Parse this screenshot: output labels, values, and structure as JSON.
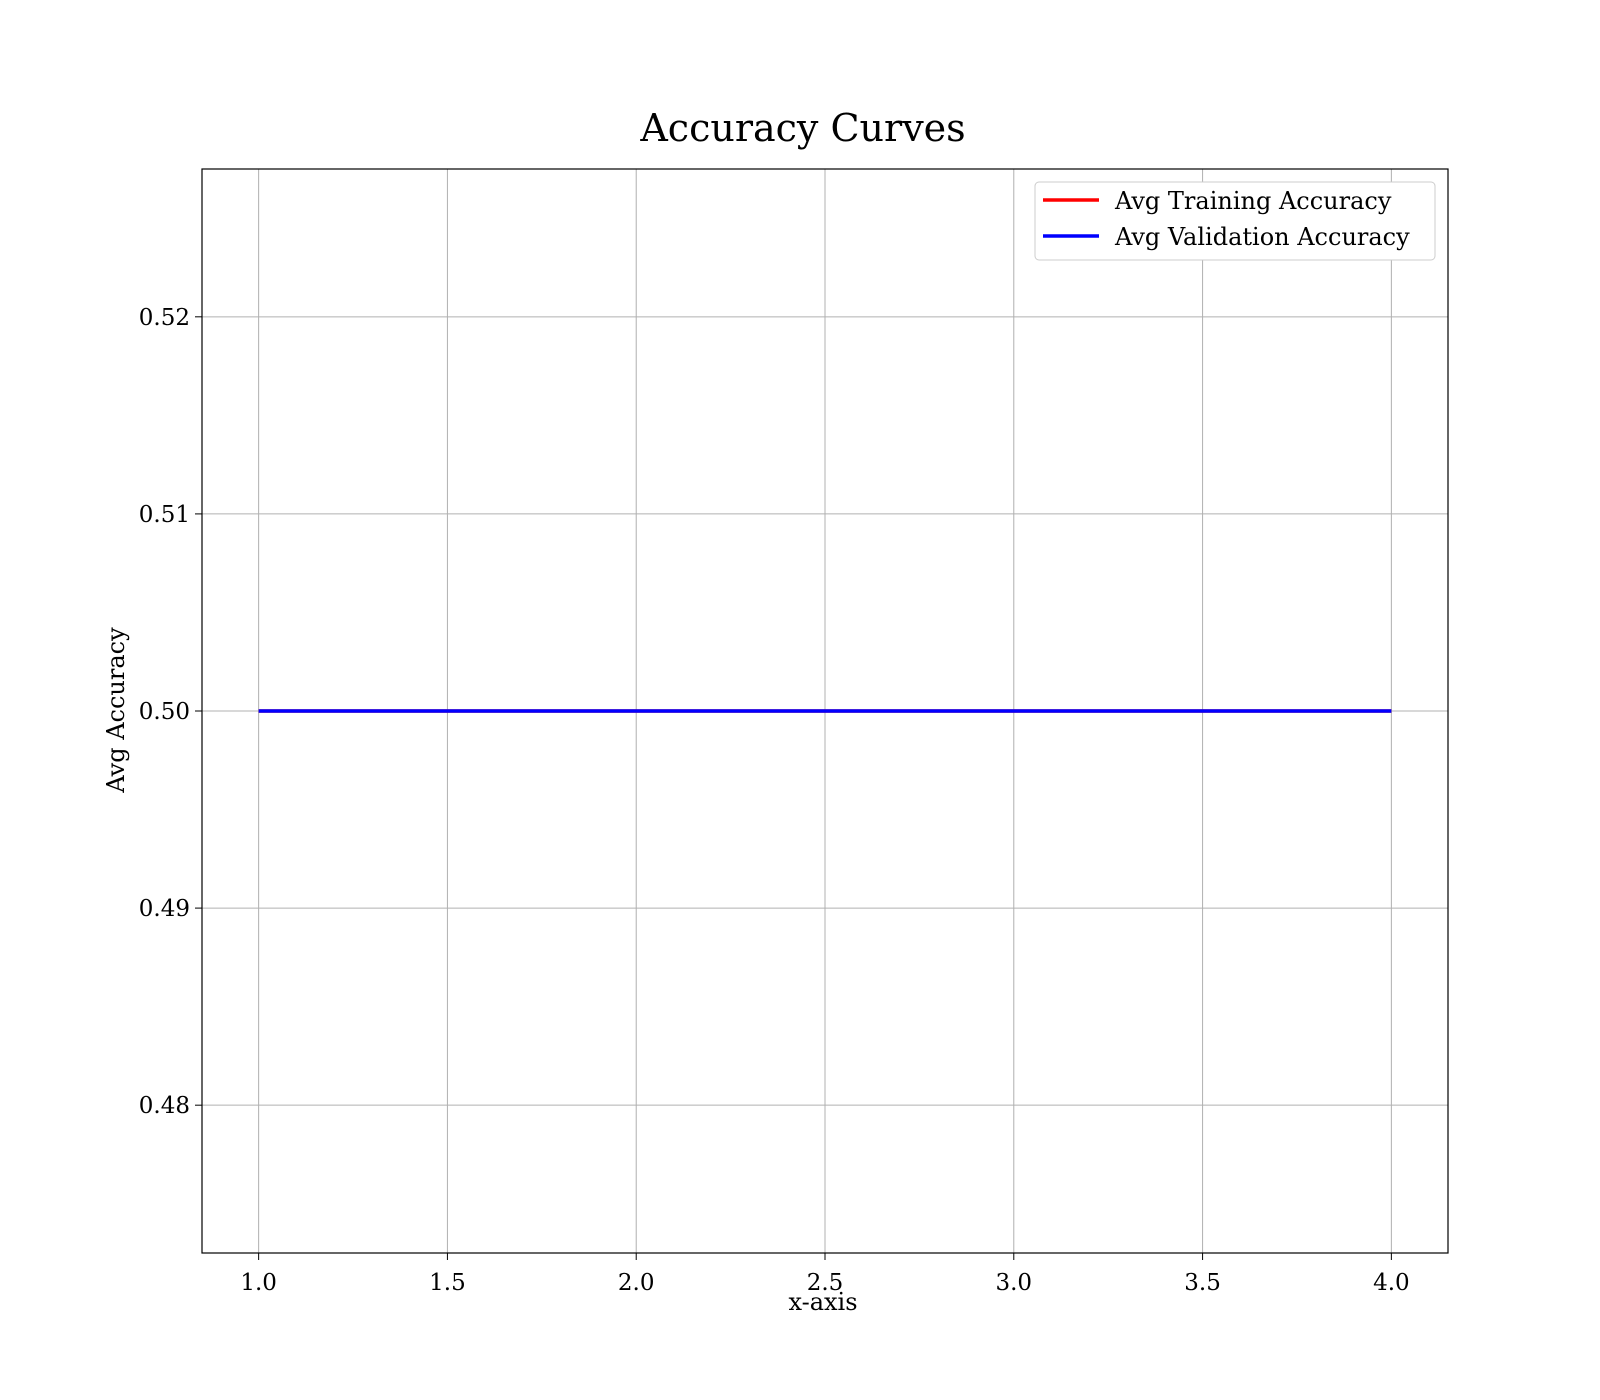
{
  "chart_data": {
    "type": "line",
    "title": "Accuracy Curves",
    "xlabel": "x-axis",
    "ylabel": "Avg Accuracy",
    "x": [
      1,
      2,
      3,
      4
    ],
    "series": [
      {
        "name": "Avg Training Accuracy",
        "color": "#ff0000",
        "values": [
          0.5,
          0.5,
          0.5,
          0.5
        ]
      },
      {
        "name": "Avg Validation Accuracy",
        "color": "#0000ff",
        "values": [
          0.5,
          0.5,
          0.5,
          0.5
        ]
      }
    ],
    "xlim": [
      0.85,
      4.15
    ],
    "ylim": [
      0.4725,
      0.5275
    ],
    "xticks": [
      1.0,
      1.5,
      2.0,
      2.5,
      3.0,
      3.5,
      4.0
    ],
    "xtick_labels": [
      "1.0",
      "1.5",
      "2.0",
      "2.5",
      "3.0",
      "3.5",
      "4.0"
    ],
    "yticks": [
      0.48,
      0.49,
      0.5,
      0.51,
      0.52
    ],
    "ytick_labels": [
      "0.48",
      "0.49",
      "0.50",
      "0.51",
      "0.52"
    ],
    "grid": true,
    "legend_position": "top-right"
  }
}
